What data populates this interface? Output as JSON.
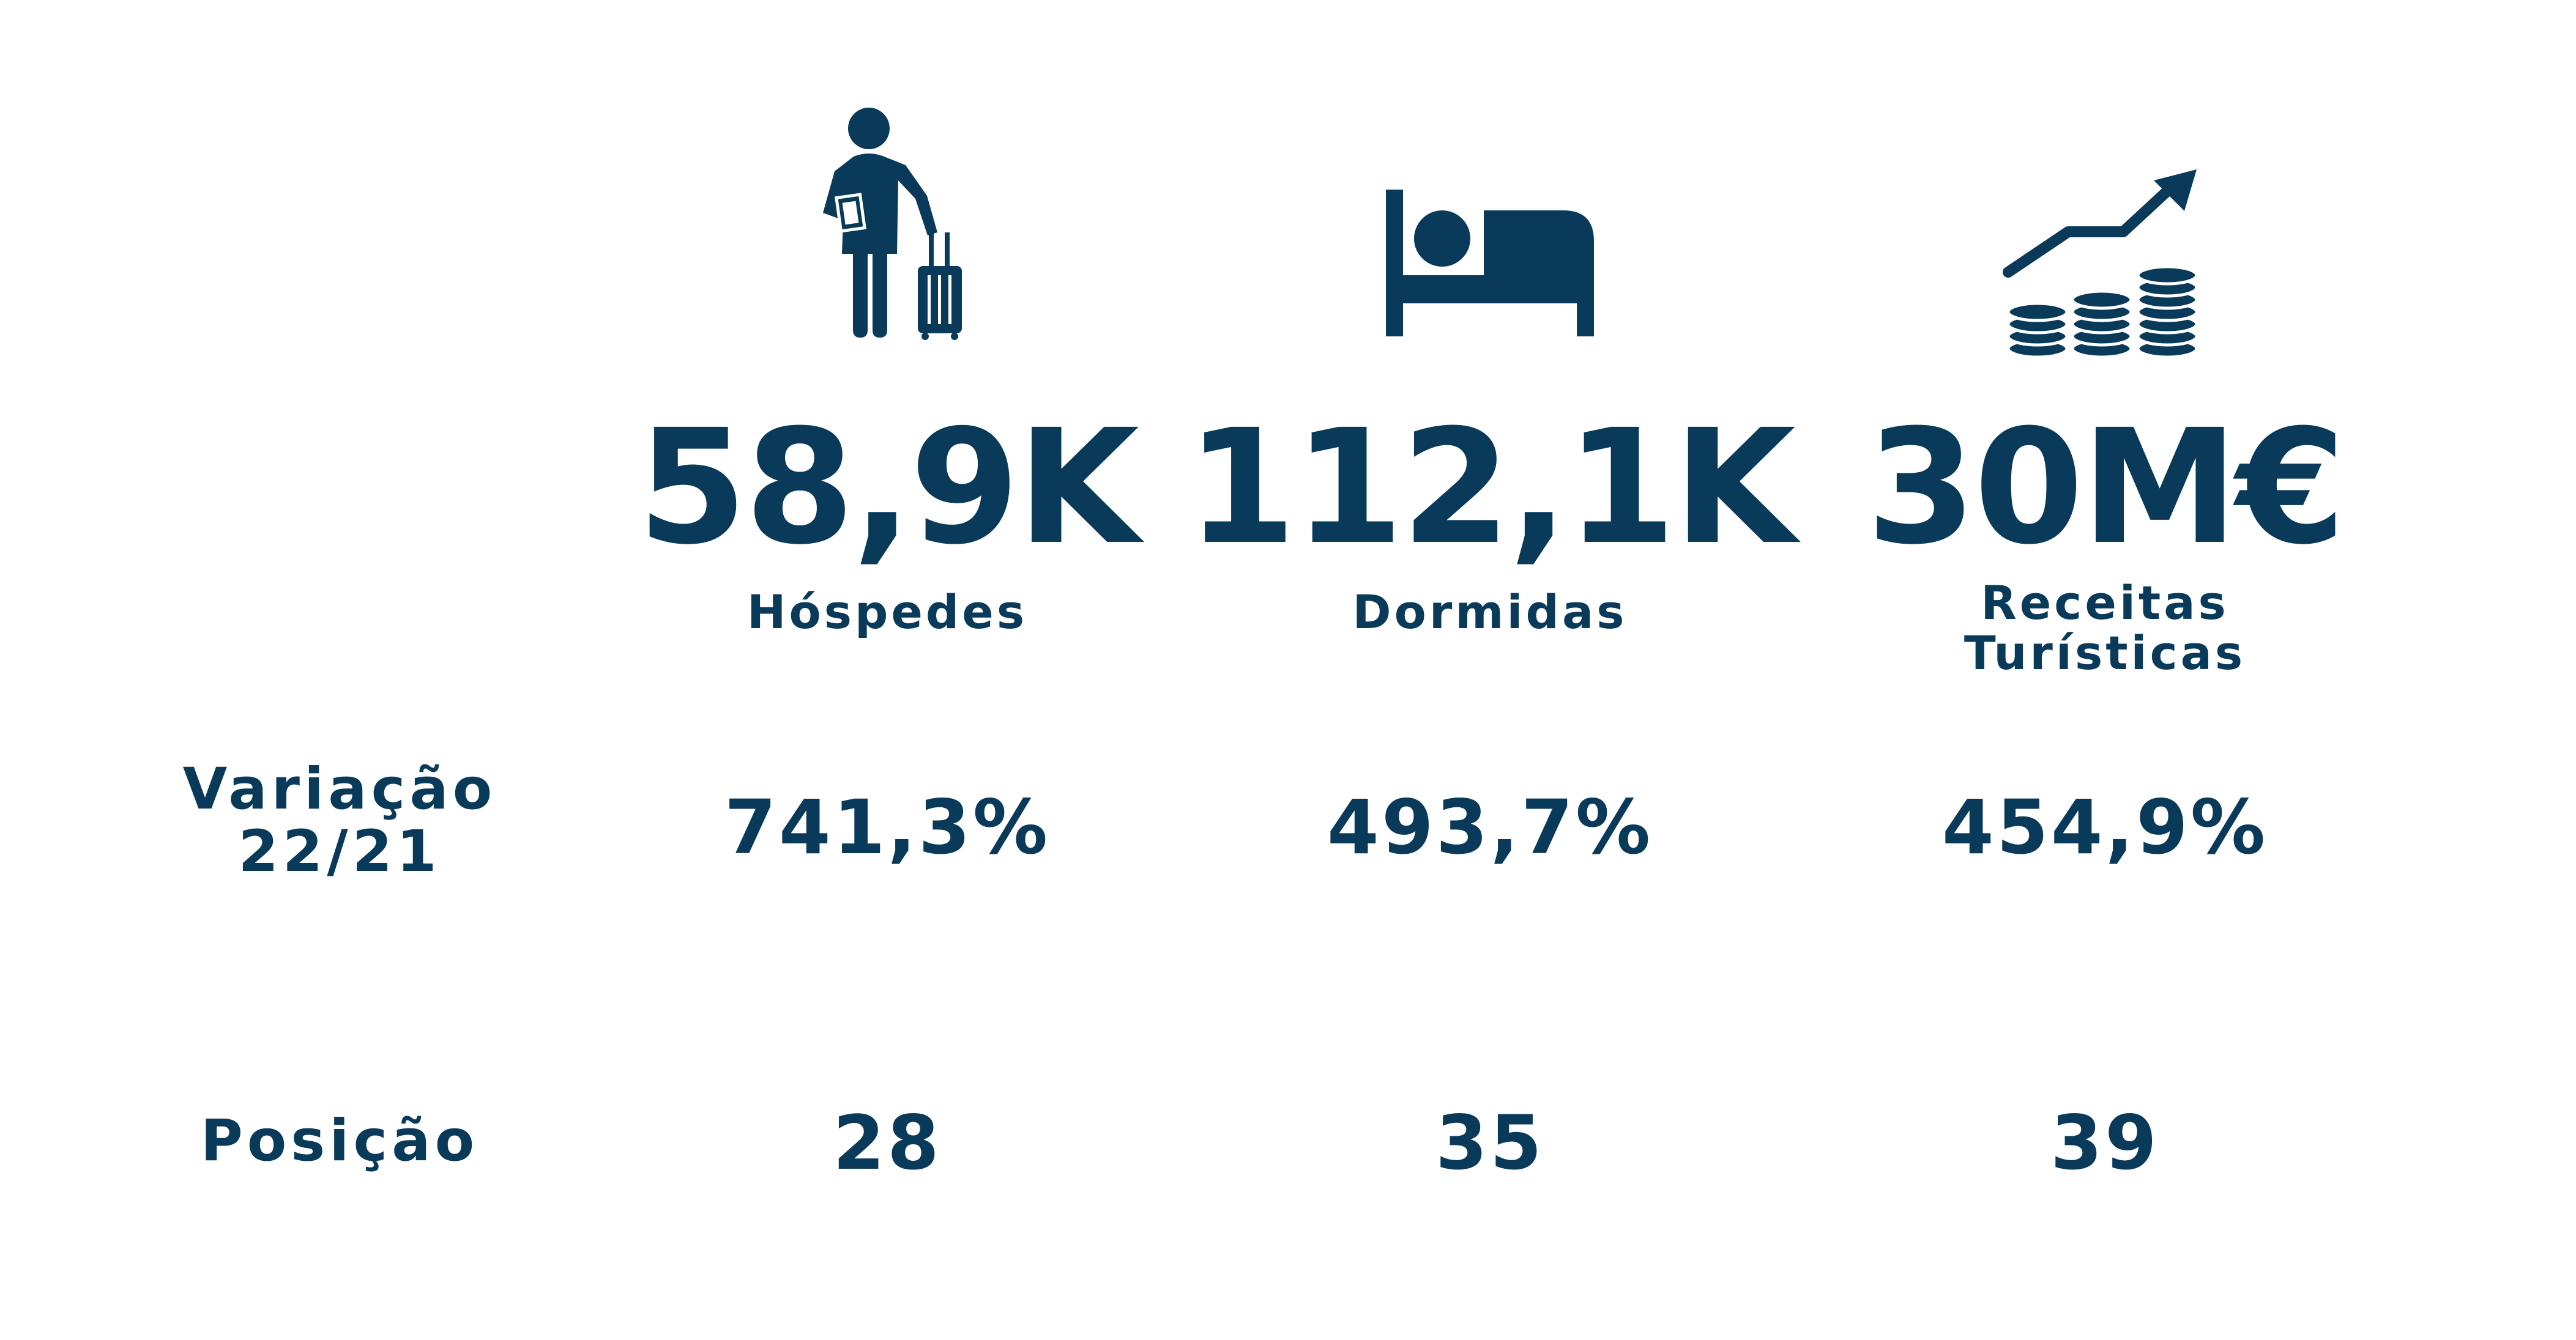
{
  "colors": {
    "primary": "#0a3a5a",
    "background": "#ffffff"
  },
  "columns": [
    {
      "icon": "traveler-luggage-icon",
      "value": "58,9K",
      "label": "Hóspedes",
      "variation": "741,3%",
      "position": "28"
    },
    {
      "icon": "bed-icon",
      "value": "112,1K",
      "label": "Dormidas",
      "variation": "493,7%",
      "position": "35"
    },
    {
      "icon": "coins-growth-icon",
      "value": "30M€",
      "label_line1": "Receitas",
      "label_line2": "Turísticas",
      "variation": "454,9%",
      "position": "39"
    }
  ],
  "row_labels": {
    "variation_line1": "Variação",
    "variation_line2": "22/21",
    "position": "Posição"
  }
}
